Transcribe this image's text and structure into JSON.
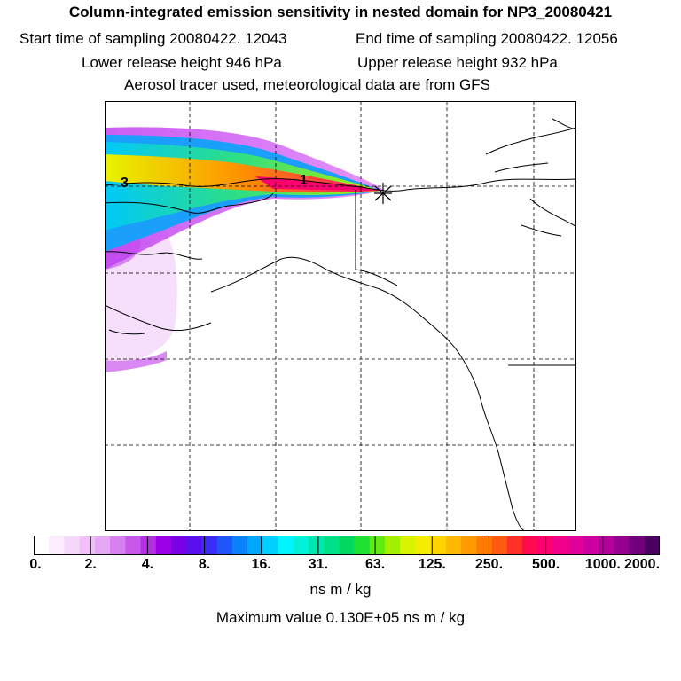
{
  "header": {
    "title": "Column-integrated emission sensitivity in nested domain for NP3_20080421",
    "start_time": "Start time of sampling 20080422. 12043",
    "end_time": "End time of sampling 20080422. 12056",
    "lower_height": "Lower release height  946 hPa",
    "upper_height": "Upper release height  932 hPa",
    "tracer_info": "Aerosol tracer used, meteorological data are from GFS"
  },
  "map": {
    "labels": {
      "point1": "1",
      "point3": "3"
    },
    "colors": {
      "frame": "#000000",
      "grid": "#000000",
      "coast": "#000000"
    }
  },
  "legend": {
    "tick_labels": [
      "0.",
      "2.",
      "4.",
      "8.",
      "16.",
      "31.",
      "63.",
      "125.",
      "250.",
      "500.",
      "1000.",
      "2000."
    ],
    "units": "ns m / kg",
    "max_value": "Maximum value  0.130E+05 ns m / kg",
    "colors": [
      "#ffffff",
      "#fcecfd",
      "#f6d8fb",
      "#efc1f8",
      "#e6a8f4",
      "#d67ff0",
      "#c858ec",
      "#b52ee6",
      "#9b00e6",
      "#7a00e6",
      "#5a10ee",
      "#3a2cf5",
      "#1e56fa",
      "#0a82fb",
      "#00a8fc",
      "#00cfff",
      "#00f5ff",
      "#00f0d8",
      "#00e8b0",
      "#00e088",
      "#00d860",
      "#20e030",
      "#60ec10",
      "#a0f000",
      "#d8f400",
      "#f6ec00",
      "#ffd400",
      "#ffb800",
      "#ff9a00",
      "#ff7a00",
      "#ff5a10",
      "#ff3028",
      "#ff0a50",
      "#ff0070",
      "#f2008a",
      "#e0009a",
      "#cc00a0",
      "#b4009c",
      "#960090",
      "#70007c",
      "#4a0060"
    ]
  }
}
